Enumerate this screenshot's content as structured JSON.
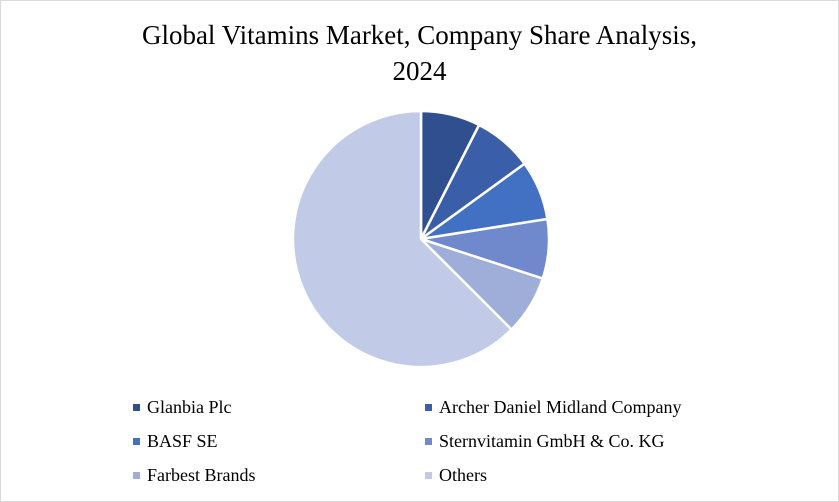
{
  "chart_data": {
    "type": "pie",
    "title": "Global Vitamins Market, Company Share Analysis, 2024",
    "title_lines": [
      "Global Vitamins Market, Company Share Analysis,",
      "2024"
    ],
    "categories": [
      "Glanbia Plc",
      "Archer Daniel Midland Company",
      "BASF SE",
      "Sternvitamin GmbH & Co. KG",
      "Farbest Brands",
      "Others"
    ],
    "values": [
      7.5,
      7.5,
      7.5,
      7.5,
      7.5,
      62.5
    ],
    "colors": [
      "#2f4f8f",
      "#3a5ea8",
      "#4270c3",
      "#7089cc",
      "#9eaed9",
      "#c1cae6"
    ],
    "legend_position": "bottom"
  }
}
